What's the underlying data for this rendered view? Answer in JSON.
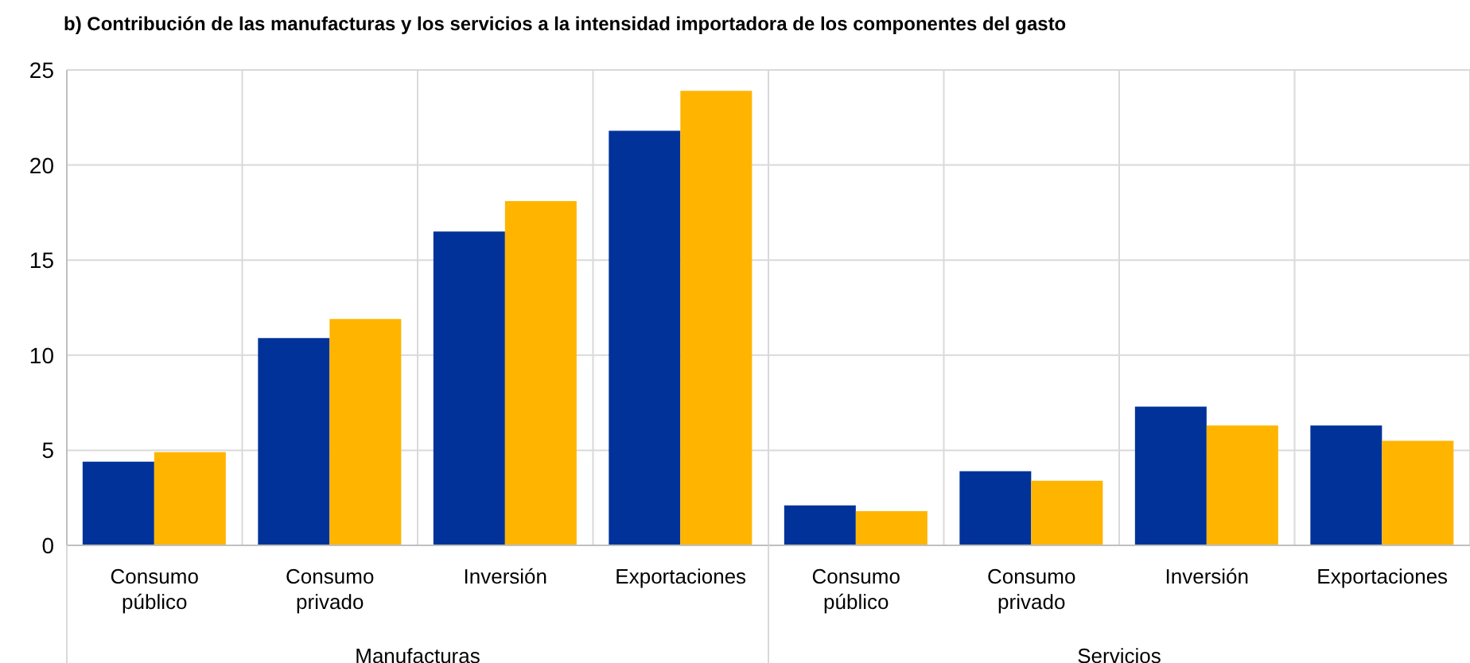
{
  "chart_data": {
    "type": "bar",
    "title": "b) Contribución de las manufacturas y los servicios a la intensidad importadora de los componentes del gasto",
    "categories": [
      "Consumo público",
      "Consumo privado",
      "Inversión",
      "Exportaciones",
      "Consumo público",
      "Consumo privado",
      "Inversión",
      "Exportaciones"
    ],
    "series": [
      {
        "color": "#003299",
        "values": [
          4.4,
          10.9,
          16.5,
          21.8,
          2.1,
          3.9,
          7.3,
          6.3
        ]
      },
      {
        "color": "#ffb400",
        "values": [
          4.9,
          11.9,
          18.1,
          23.9,
          1.8,
          3.4,
          6.3,
          5.5
        ]
      }
    ],
    "ylim": [
      0,
      25
    ],
    "yticks": [
      0,
      5,
      10,
      15,
      20,
      25
    ],
    "grid": true,
    "legend": false,
    "annotations": [
      "Manufacturas",
      "Servicios"
    ]
  }
}
